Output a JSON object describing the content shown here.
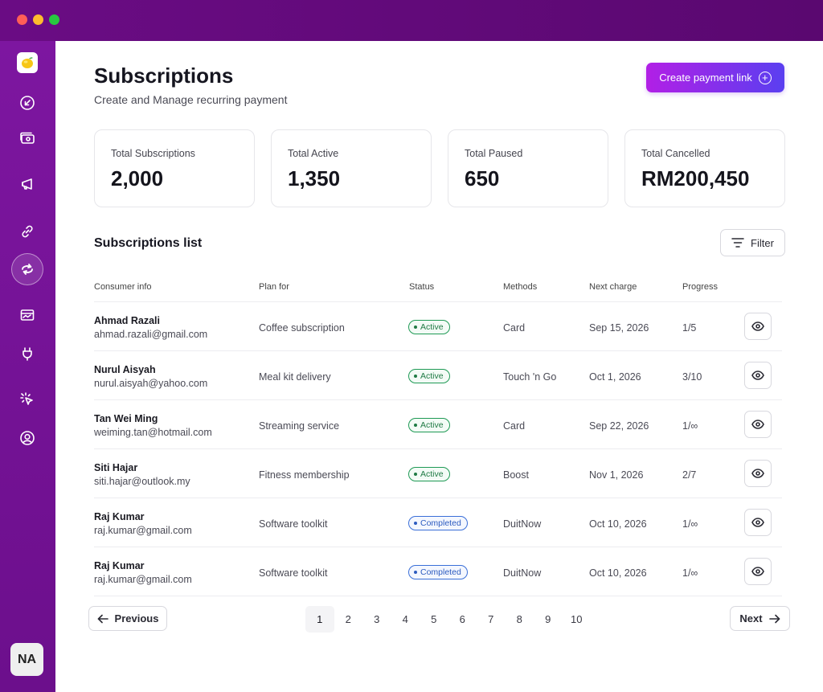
{
  "window": {
    "controls": [
      "close",
      "minimize",
      "maximize"
    ]
  },
  "sidebar": {
    "logo_icon": "lemon-logo-icon",
    "items": [
      {
        "icon": "arrow-down-left-circle-icon",
        "active": false
      },
      {
        "icon": "wallet-card-icon",
        "active": false
      },
      {
        "icon": "megaphone-icon",
        "active": false
      },
      {
        "icon": "link-icon",
        "active": false
      },
      {
        "icon": "recurring-arrows-icon",
        "active": true
      },
      {
        "icon": "invoice-icon",
        "active": false
      },
      {
        "icon": "plug-icon",
        "active": false
      },
      {
        "icon": "cursor-click-icon",
        "active": false
      },
      {
        "icon": "user-circle-icon",
        "active": false
      }
    ],
    "avatar_initials": "NA"
  },
  "header": {
    "title": "Subscriptions",
    "subtitle": "Create and Manage recurring payment",
    "create_button_label": "Create payment link"
  },
  "stats": [
    {
      "label": "Total Subscriptions",
      "value": "2,000"
    },
    {
      "label": "Total Active",
      "value": "1,350"
    },
    {
      "label": "Total Paused",
      "value": "650"
    },
    {
      "label": "Total Cancelled",
      "value": "RM200,450"
    }
  ],
  "list": {
    "title": "Subscriptions list",
    "filter_label": "Filter",
    "columns": [
      "Consumer info",
      "Plan for",
      "Status",
      "Methods",
      "Next charge",
      "Progress"
    ],
    "rows": [
      {
        "name": "Ahmad Razali",
        "email": "ahmad.razali@gmail.com",
        "plan": "Coffee subscription",
        "status": "Active",
        "method": "Card",
        "next_charge": "Sep 15, 2026",
        "progress": "1/5"
      },
      {
        "name": "Nurul Aisyah",
        "email": "nurul.aisyah@yahoo.com",
        "plan": "Meal kit delivery",
        "status": "Active",
        "method": "Touch 'n Go",
        "next_charge": "Oct 1, 2026",
        "progress": "3/10"
      },
      {
        "name": "Tan Wei Ming",
        "email": "weiming.tan@hotmail.com",
        "plan": "Streaming service",
        "status": "Active",
        "method": "Card",
        "next_charge": "Sep 22, 2026",
        "progress": "1/∞"
      },
      {
        "name": "Siti Hajar",
        "email": "siti.hajar@outlook.my",
        "plan": "Fitness membership",
        "status": "Active",
        "method": "Boost",
        "next_charge": "Nov 1, 2026",
        "progress": "2/7"
      },
      {
        "name": "Raj Kumar",
        "email": "raj.kumar@gmail.com",
        "plan": "Software toolkit",
        "status": "Completed",
        "method": "DuitNow",
        "next_charge": "Oct 10, 2026",
        "progress": "1/∞"
      },
      {
        "name": "Raj Kumar",
        "email": "raj.kumar@gmail.com",
        "plan": "Software toolkit",
        "status": "Completed",
        "method": "DuitNow",
        "next_charge": "Oct 10, 2026",
        "progress": "1/∞"
      }
    ]
  },
  "pagination": {
    "previous_label": "Previous",
    "next_label": "Next",
    "pages": [
      "1",
      "2",
      "3",
      "4",
      "5",
      "6",
      "7",
      "8",
      "9",
      "10"
    ],
    "current_page": "1"
  },
  "colors": {
    "sidebar": "#7d16a0",
    "titlebar": "#6a0c84",
    "accent_start": "#b21fe6",
    "accent_end": "#5a3ff0",
    "active_status": "#1f9a55",
    "completed_status": "#3a6fd8"
  }
}
